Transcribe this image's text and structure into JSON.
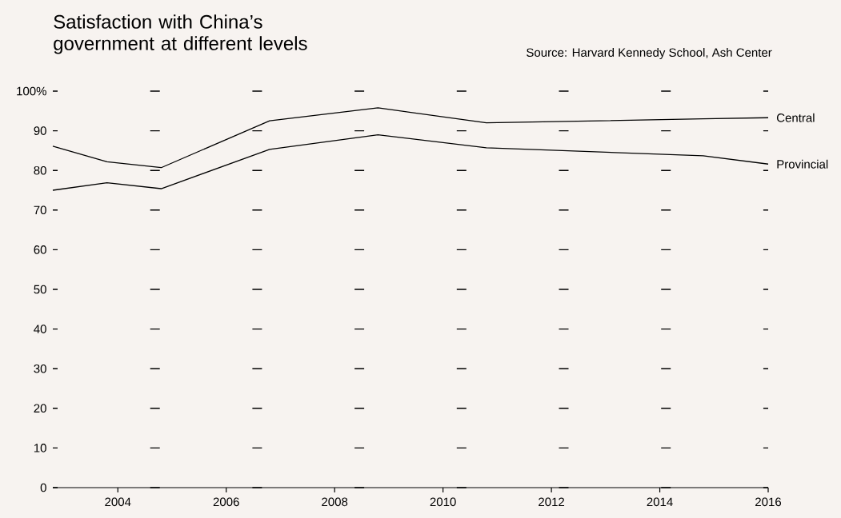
{
  "chart_data": {
    "type": "line",
    "title": "Satisfaction with China’s government at different levels",
    "annotations": [
      "Source: Harvard Kennedy School, Ash Center"
    ],
    "x": [
      2002.8,
      2003.8,
      2004.8,
      2006.8,
      2008.8,
      2010.8,
      2014.8,
      2016
    ],
    "series": [
      {
        "name": "Central",
        "color": "#000000",
        "values": [
          86.1,
          82.2,
          80.7,
          92.5,
          95.8,
          92.0,
          93.0,
          93.3
        ]
      },
      {
        "name": "Provincial",
        "color": "#000000",
        "values": [
          75.0,
          76.9,
          75.4,
          85.3,
          89.0,
          85.7,
          83.7,
          81.6
        ]
      }
    ],
    "xlim": [
      2002.8,
      2016
    ],
    "xticks": [
      2004,
      2006,
      2008,
      2010,
      2012,
      2014,
      2016
    ],
    "ylim": [
      0,
      100
    ],
    "yticks": [
      0,
      10,
      20,
      30,
      40,
      50,
      60,
      70,
      80,
      90,
      {
        "value": 100,
        "label": "100%"
      }
    ],
    "grid": "y"
  }
}
